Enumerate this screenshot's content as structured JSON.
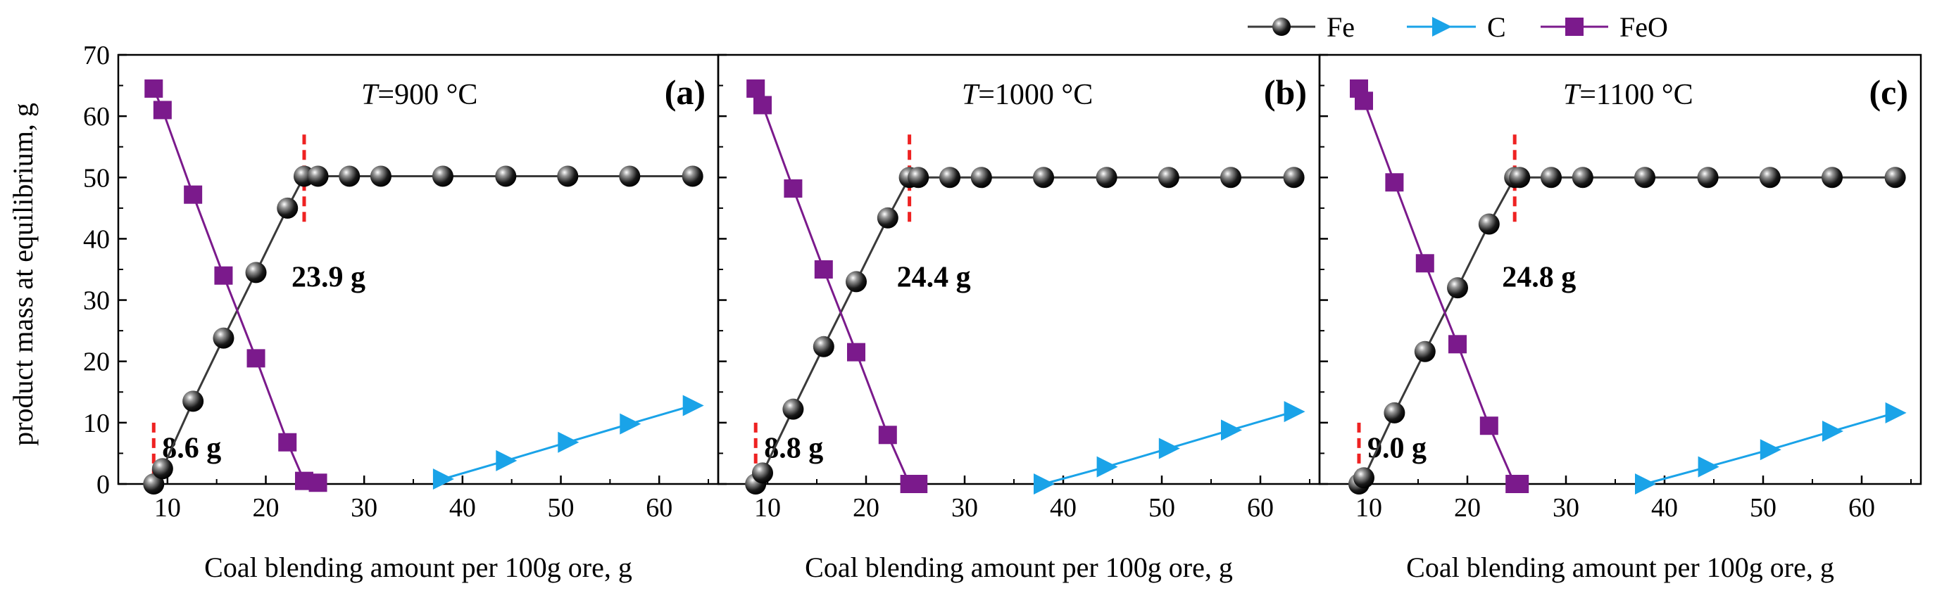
{
  "legend": [
    {
      "name": "Fe",
      "color": "#3a3a3a",
      "marker": "sphere"
    },
    {
      "name": "C",
      "color": "#1aa3e8",
      "marker": "triangle-right"
    },
    {
      "name": "FeO",
      "color": "#7b1a8c",
      "marker": "square"
    }
  ],
  "ylabel": "product mass at equilibrium, g",
  "chart_data": [
    {
      "type": "line",
      "panel_label": "(a)",
      "temp_var": "T",
      "temp_text": "=900 °C",
      "xlabel": "Coal blending amount per 100g ore, g",
      "xlim": [
        5,
        66
      ],
      "ylim": [
        0,
        70
      ],
      "xticks": [
        10,
        20,
        30,
        40,
        50,
        60
      ],
      "yticks": [
        0,
        10,
        20,
        30,
        40,
        50,
        60,
        70
      ],
      "series": [
        {
          "name": "Fe",
          "x": [
            8.6,
            9.5,
            12.6,
            15.7,
            19.0,
            22.2,
            23.9,
            25.3,
            28.5,
            31.7,
            38.0,
            44.4,
            50.7,
            57.0,
            63.4
          ],
          "y": [
            0.0,
            2.5,
            13.5,
            23.8,
            34.5,
            45.0,
            50.2,
            50.2,
            50.2,
            50.2,
            50.2,
            50.2,
            50.2,
            50.2,
            50.2
          ]
        },
        {
          "name": "C",
          "x": [
            38.0,
            44.4,
            50.7,
            57.0,
            63.4
          ],
          "y": [
            0.8,
            3.8,
            6.8,
            9.8,
            12.8
          ]
        },
        {
          "name": "FeO",
          "x": [
            8.6,
            9.5,
            12.6,
            15.7,
            19.0,
            22.2,
            23.9,
            25.3
          ],
          "y": [
            64.5,
            61.0,
            47.2,
            34.0,
            20.5,
            6.8,
            0.5,
            0.2
          ]
        }
      ],
      "markers": [
        {
          "x": 23.9,
          "label": "23.9 g",
          "y0": 42,
          "y1": 57
        },
        {
          "x": 8.6,
          "label": "8.6 g",
          "y0": 0,
          "y1": 10
        }
      ]
    },
    {
      "type": "line",
      "panel_label": "(b)",
      "temp_var": "T",
      "temp_text": "=1000 °C",
      "xlabel": "Coal blending amount per 100g ore, g",
      "xlim": [
        5,
        66
      ],
      "ylim": [
        0,
        70
      ],
      "xticks": [
        10,
        20,
        30,
        40,
        50,
        60
      ],
      "yticks": [
        0,
        10,
        20,
        30,
        40,
        50,
        60,
        70
      ],
      "series": [
        {
          "name": "Fe",
          "x": [
            8.8,
            9.5,
            12.6,
            15.7,
            19.0,
            22.2,
            24.4,
            25.3,
            28.5,
            31.7,
            38.0,
            44.4,
            50.7,
            57.0,
            63.4
          ],
          "y": [
            0.0,
            1.8,
            12.2,
            22.4,
            33.0,
            43.4,
            50.0,
            50.0,
            50.0,
            50.0,
            50.0,
            50.0,
            50.0,
            50.0,
            50.0
          ]
        },
        {
          "name": "C",
          "x": [
            38.0,
            44.4,
            50.7,
            57.0,
            63.4
          ],
          "y": [
            0.0,
            2.8,
            5.8,
            8.8,
            11.8
          ]
        },
        {
          "name": "FeO",
          "x": [
            8.8,
            9.5,
            12.6,
            15.7,
            19.0,
            22.2,
            24.4,
            25.3
          ],
          "y": [
            64.5,
            61.8,
            48.2,
            35.0,
            21.5,
            8.0,
            0.0,
            0.0
          ]
        }
      ],
      "markers": [
        {
          "x": 24.4,
          "label": "24.4 g",
          "y0": 42,
          "y1": 57
        },
        {
          "x": 8.8,
          "label": "8.8 g",
          "y0": 0,
          "y1": 10
        }
      ]
    },
    {
      "type": "line",
      "panel_label": "(c)",
      "temp_var": "T",
      "temp_text": "=1100 °C",
      "xlabel": "Coal blending amount per 100g ore, g",
      "xlim": [
        5,
        66
      ],
      "ylim": [
        0,
        70
      ],
      "xticks": [
        10,
        20,
        30,
        40,
        50,
        60
      ],
      "yticks": [
        0,
        10,
        20,
        30,
        40,
        50,
        60,
        70
      ],
      "series": [
        {
          "name": "Fe",
          "x": [
            9.0,
            9.5,
            12.6,
            15.7,
            19.0,
            22.2,
            24.8,
            25.3,
            28.5,
            31.7,
            38.0,
            44.4,
            50.7,
            57.0,
            63.4
          ],
          "y": [
            0.0,
            1.0,
            11.6,
            21.6,
            32.0,
            42.4,
            50.0,
            50.0,
            50.0,
            50.0,
            50.0,
            50.0,
            50.0,
            50.0,
            50.0
          ]
        },
        {
          "name": "C",
          "x": [
            38.0,
            44.4,
            50.7,
            57.0,
            63.4
          ],
          "y": [
            0.0,
            2.8,
            5.6,
            8.6,
            11.6
          ]
        },
        {
          "name": "FeO",
          "x": [
            9.0,
            9.5,
            12.6,
            15.7,
            19.0,
            22.2,
            24.8,
            25.3
          ],
          "y": [
            64.5,
            62.5,
            49.2,
            36.0,
            22.8,
            9.5,
            0.0,
            0.0
          ]
        }
      ],
      "markers": [
        {
          "x": 24.8,
          "label": "24.8 g",
          "y0": 42,
          "y1": 57
        },
        {
          "x": 9.0,
          "label": "9.0 g",
          "y0": 0,
          "y1": 10
        }
      ]
    }
  ]
}
